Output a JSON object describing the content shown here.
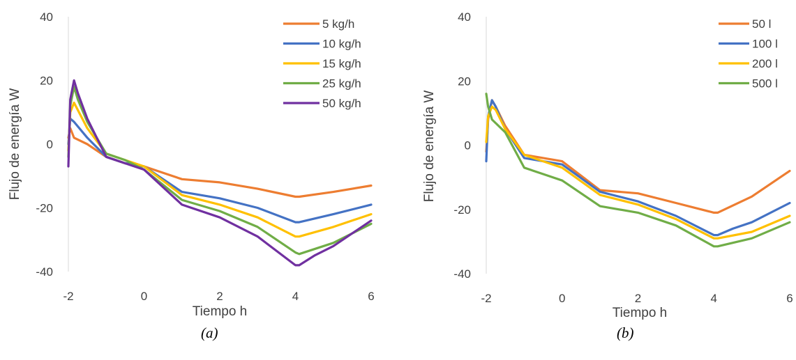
{
  "chart_data": [
    {
      "type": "line",
      "caption": "(a)",
      "xlabel": "Tiempo h",
      "ylabel": "Flujo de energía W",
      "xlim": [
        -2,
        6
      ],
      "ylim": [
        -40,
        40
      ],
      "xticks": [
        "-2",
        "0",
        "2",
        "4",
        "6"
      ],
      "yticks": [
        "40",
        "20",
        "0",
        "-20",
        "-40"
      ],
      "grid": false,
      "legend_position": "top-right",
      "series": [
        {
          "name": "5 kg/h",
          "color": "#ED7D31",
          "x": [
            -2,
            -1.95,
            -1.85,
            -1.5,
            -1,
            -0.5,
            0,
            1,
            2,
            3,
            4,
            4.1,
            5,
            6
          ],
          "y": [
            2,
            5,
            2,
            0,
            -4,
            -6,
            -7,
            -11,
            -12,
            -14,
            -16.5,
            -16.5,
            -15,
            -13
          ]
        },
        {
          "name": "10 kg/h",
          "color": "#4472C4",
          "x": [
            -2,
            -1.95,
            -1.85,
            -1.5,
            -1,
            -0.5,
            0,
            1,
            2,
            3,
            4,
            4.1,
            5,
            6
          ],
          "y": [
            0,
            8,
            7,
            2,
            -4,
            -6,
            -7,
            -15,
            -17,
            -20,
            -24.5,
            -24.5,
            -22,
            -19
          ]
        },
        {
          "name": "15 kg/h",
          "color": "#FFC000",
          "x": [
            -2,
            -1.95,
            -1.85,
            -1.5,
            -1,
            -0.5,
            0,
            1,
            2,
            3,
            4,
            4.1,
            5,
            6
          ],
          "y": [
            -2,
            10,
            13,
            5,
            -3,
            -5,
            -7,
            -16,
            -19,
            -23,
            -29,
            -29,
            -26,
            -22
          ]
        },
        {
          "name": "25 kg/h",
          "color": "#70AD47",
          "x": [
            -2,
            -1.95,
            -1.85,
            -1.75,
            -1.5,
            -1,
            -0.5,
            0,
            1,
            2,
            3,
            4,
            4.1,
            5,
            6
          ],
          "y": [
            -4,
            12,
            18,
            14,
            7,
            -3,
            -5,
            -8,
            -17.5,
            -21,
            -26,
            -34,
            -34.5,
            -31,
            -25
          ]
        },
        {
          "name": "50 kg/h",
          "color": "#7030A0",
          "x": [
            -2,
            -1.95,
            -1.85,
            -1.75,
            -1.5,
            -1,
            -0.5,
            0,
            1,
            2,
            3,
            4,
            4.1,
            4.5,
            5,
            6
          ],
          "y": [
            -7,
            14,
            20,
            16,
            8,
            -4,
            -6,
            -8,
            -19,
            -23,
            -29,
            -38,
            -38,
            -35,
            -32,
            -24
          ]
        }
      ]
    },
    {
      "type": "line",
      "caption": "(b)",
      "xlabel": "Tiempo h",
      "ylabel": "Flujo de energía W",
      "xlim": [
        -2,
        6
      ],
      "ylim": [
        -40,
        40
      ],
      "xticks": [
        "-2",
        "0",
        "2",
        "4",
        "6"
      ],
      "yticks": [
        "40",
        "20",
        "0",
        "-20",
        "-40"
      ],
      "grid": false,
      "legend_position": "top-right",
      "series": [
        {
          "name": "50 l",
          "color": "#ED7D31",
          "x": [
            -2,
            -1.95,
            -1.85,
            -1.75,
            -1.5,
            -1,
            -0.5,
            0,
            1,
            1.5,
            2,
            3,
            4,
            4.1,
            5,
            6
          ],
          "y": [
            -2,
            8,
            14,
            12,
            6,
            -3,
            -4,
            -5,
            -14,
            -14.5,
            -15,
            -18,
            -21,
            -21,
            -16,
            -8
          ]
        },
        {
          "name": "100 l",
          "color": "#4472C4",
          "x": [
            -2,
            -1.95,
            -1.85,
            -1.75,
            -1.5,
            -1,
            -0.5,
            0,
            1,
            2,
            3,
            4,
            4.1,
            4.5,
            5,
            6
          ],
          "y": [
            -5,
            9,
            14,
            12,
            5,
            -4,
            -5,
            -6,
            -14.5,
            -17.5,
            -22,
            -28,
            -28,
            -26,
            -24,
            -18
          ]
        },
        {
          "name": "200 l",
          "color": "#FFC000",
          "x": [
            -2,
            -1.95,
            -1.85,
            -1.75,
            -1.5,
            -1,
            -0.5,
            0,
            1,
            2,
            3,
            4,
            4.1,
            5,
            6
          ],
          "y": [
            1,
            9,
            12,
            11,
            5,
            -3,
            -5,
            -7,
            -15.5,
            -18.5,
            -23,
            -29,
            -29,
            -27,
            -22
          ]
        },
        {
          "name": "500 l",
          "color": "#70AD47",
          "x": [
            -2,
            -1.95,
            -1.85,
            -1.5,
            -1,
            -0.5,
            0,
            1,
            2,
            3,
            4,
            4.1,
            5,
            6
          ],
          "y": [
            16,
            12,
            8,
            4,
            -7,
            -9,
            -11,
            -19,
            -21,
            -25,
            -31.5,
            -31.5,
            -29,
            -24
          ]
        }
      ]
    }
  ]
}
